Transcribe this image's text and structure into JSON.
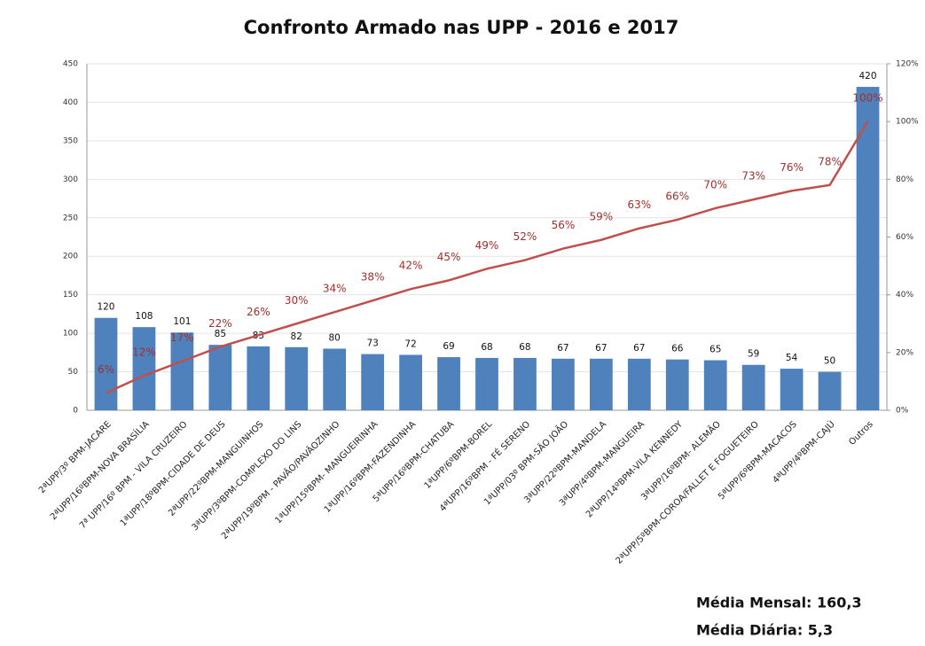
{
  "chart_data": {
    "type": "bar",
    "title": "Confronto Armado nas UPP - 2016 e 2017",
    "categories": [
      "2ªUPP/3º BPM-JACARE",
      "2ªUPP/16ºBPM-NOVA BRASÍLIA",
      "7ª UPP/16º BPM - VILA CRUZEIRO",
      "1ªUPP/18ºBPM-CIDADE DE DEUS",
      "2ªUPP/22ºBPM-MANGUINHOS",
      "3ªUPP/3ºBPM-COMPLEXO DO LINS",
      "2ªUPP/19ºBPM - PAVÃO/PAVÃOZINHO",
      "1ªUPP/15ºBPM- MANGUEIRINHA",
      "1ªUPP/16ºBPM-FAZENDINHA",
      "5ªUPP/16ºBPM-CHATUBA",
      "1ªUPP/6ºBPM-BOREL",
      "4ªUPP/16ºBPM - FÉ SERENO",
      "1ªUPP/03º BPM-SÃO JOÃO",
      "3ªUPP/22ºBPM-MANDELA",
      "3ªUPP/4ºBPM-MANGUEIRA",
      "2ªUPP/14ºBPM-VILA KENNEDY",
      "3ªUPP/16ºBPM- ALEMÃO",
      "2ªUPP/5ºBPM-COROA/FALLET E FOGUETEIRO",
      "5ªUPP/6ºBPM-MACACOS",
      "4ªUPP/4ºBPM-CAJÚ",
      "Outros"
    ],
    "series": [
      {
        "type": "bar",
        "color": "#4f81bd",
        "values": [
          120,
          108,
          101,
          85,
          83,
          82,
          80,
          73,
          72,
          69,
          68,
          68,
          67,
          67,
          67,
          66,
          65,
          59,
          54,
          50,
          420
        ]
      },
      {
        "type": "line",
        "axis": "y2",
        "color": "#c0504d",
        "values": [
          6,
          12,
          17,
          22,
          26,
          30,
          34,
          38,
          42,
          45,
          49,
          52,
          56,
          59,
          63,
          66,
          70,
          73,
          76,
          78,
          100
        ],
        "value_labels": [
          "6%",
          "12%",
          "17%",
          "22%",
          "26%",
          "30%",
          "34%",
          "38%",
          "42%",
          "45%",
          "49%",
          "52%",
          "56%",
          "59%",
          "63%",
          "66%",
          "70%",
          "73%",
          "76%",
          "78%",
          "100%"
        ]
      }
    ],
    "ylim": [
      0,
      450
    ],
    "yticks": [
      0,
      50,
      100,
      150,
      200,
      250,
      300,
      350,
      400,
      450
    ],
    "y2lim": [
      0,
      120
    ],
    "y2ticks": [
      {
        "value": 0,
        "label": "0%"
      },
      {
        "value": 20,
        "label": "20%"
      },
      {
        "value": 40,
        "label": "40%"
      },
      {
        "value": 60,
        "label": "60%"
      },
      {
        "value": 80,
        "label": "80%"
      },
      {
        "value": 100,
        "label": "100%"
      },
      {
        "value": 120,
        "label": "120%"
      }
    ],
    "grid": true,
    "annotations": [
      "Média Mensal: 160,3",
      "Média Diária: 5,3"
    ]
  }
}
